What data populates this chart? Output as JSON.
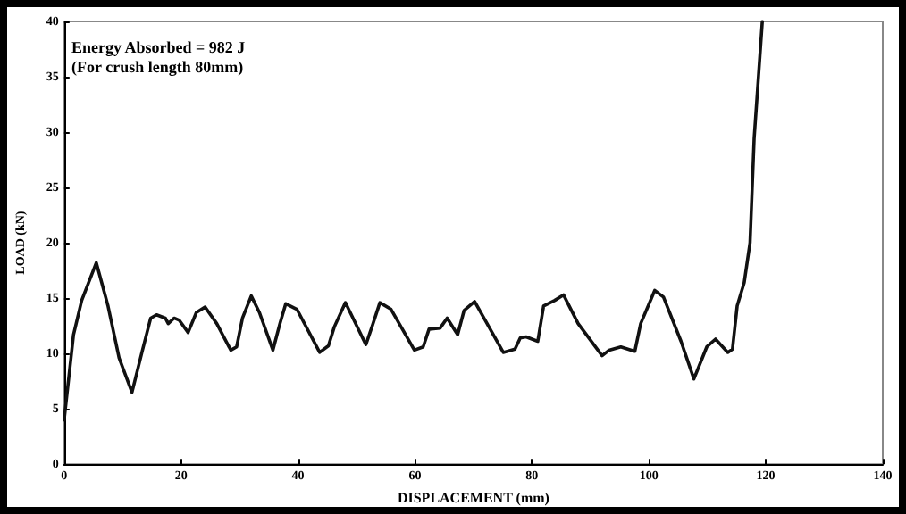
{
  "chart_data": {
    "type": "line",
    "xlabel": "DISPLACEMENT (mm)",
    "ylabel": "LOAD (kN)",
    "annotations": [
      "Energy Absorbed = 982 J",
      "(For crush length 80mm)"
    ],
    "xlim": [
      0,
      140
    ],
    "xticks": [
      0,
      20,
      40,
      60,
      80,
      100,
      120,
      140
    ],
    "ylim": [
      0,
      40
    ],
    "yticks": [
      0,
      5,
      10,
      15,
      20,
      25,
      30,
      35,
      40
    ],
    "grid": false,
    "marker": "none",
    "line_style": "solid",
    "series": [
      {
        "color": "#111111",
        "x": [
          0,
          1.6,
          3,
          5.5,
          7.5,
          9.4,
          11.6,
          13.3,
          14.8,
          15.8,
          17.3,
          17.8,
          18.8,
          19.7,
          21.2,
          22.6,
          24.1,
          26.1,
          28.5,
          29.5,
          30.5,
          32,
          33.4,
          35.7,
          36.9,
          37.9,
          39.8,
          43.7,
          45.2,
          46.2,
          48.1,
          51.6,
          52.7,
          54,
          55.9,
          59.9,
          61.4,
          62.4,
          64.3,
          65.5,
          67.3,
          68.4,
          70.2,
          75.1,
          77.1,
          78,
          79,
          81,
          82,
          83.9,
          85.4,
          87.9,
          92,
          93.2,
          95.2,
          97.6,
          98.6,
          101,
          102.5,
          105.5,
          107.7,
          109.9,
          111.4,
          113.5,
          114.3,
          115.1,
          116.3,
          117.3,
          118,
          119.4
        ],
        "values": [
          4,
          11.7,
          14.8,
          18.2,
          14.3,
          9.6,
          6.5,
          10.1,
          13.2,
          13.5,
          13.2,
          12.7,
          13.2,
          13,
          11.9,
          13.7,
          14.2,
          12.7,
          10.3,
          10.6,
          13.2,
          15.2,
          13.7,
          10.3,
          12.7,
          14.5,
          14,
          10.1,
          10.7,
          12.4,
          14.6,
          10.8,
          12.5,
          14.6,
          14,
          10.3,
          10.6,
          12.2,
          12.3,
          13.2,
          11.7,
          13.9,
          14.7,
          10.1,
          10.4,
          11.4,
          11.5,
          11.1,
          14.3,
          14.8,
          15.3,
          12.7,
          9.8,
          10.3,
          10.6,
          10.2,
          12.7,
          15.7,
          15.1,
          11.1,
          7.7,
          10.6,
          11.3,
          10.1,
          10.4,
          14.3,
          16.4,
          20,
          29.4,
          40
        ]
      }
    ]
  }
}
